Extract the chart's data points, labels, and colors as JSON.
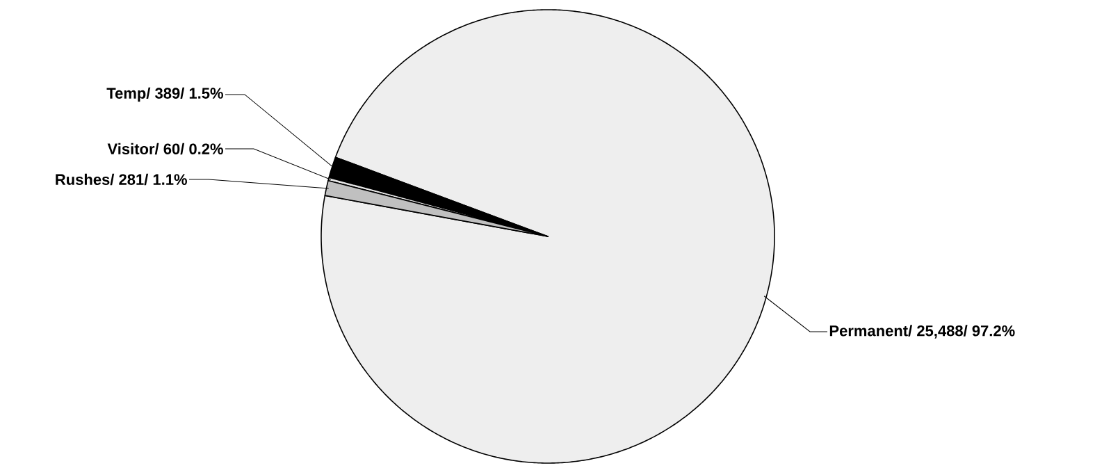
{
  "chart_data": {
    "type": "pie",
    "categories": [
      "Permanent/",
      "Temp/",
      "Visitor/",
      "Rushes/"
    ],
    "values": [
      25488,
      389,
      60,
      281
    ],
    "value_labels": [
      "25,488/ 97.2%",
      "389/ 1.5%",
      "60/ 0.2%",
      "281/ 1.1%"
    ],
    "colors": [
      "#eeeeee",
      "#000000",
      "#e6e6e6",
      "#c0c0c0"
    ]
  }
}
